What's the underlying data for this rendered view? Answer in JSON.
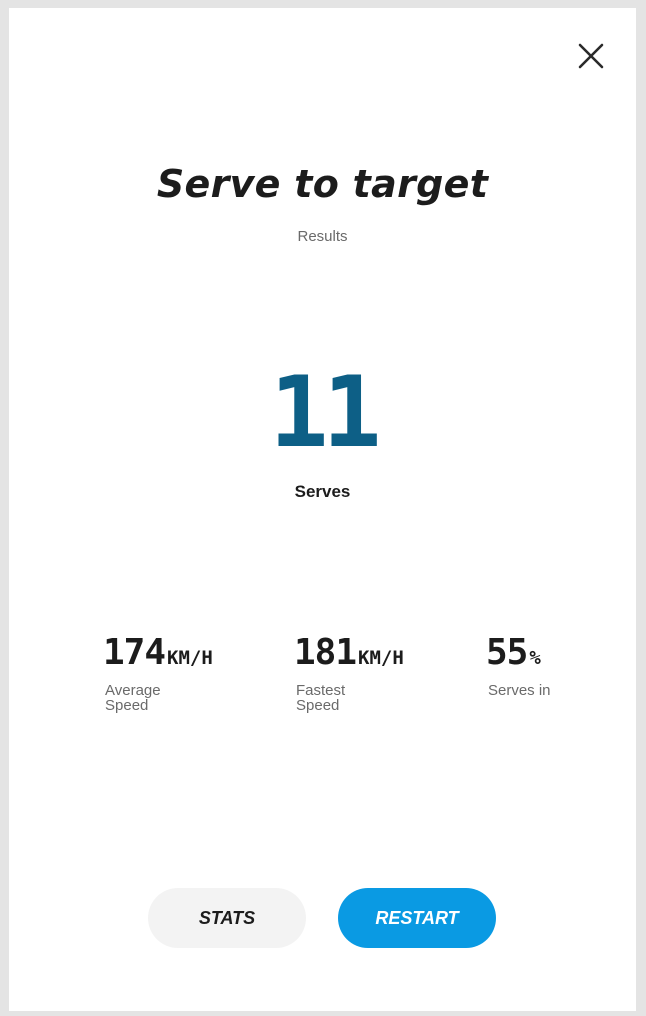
{
  "dialog": {
    "title": "Serve to target",
    "subtitle": "Results",
    "close_icon": "close-icon"
  },
  "summary": {
    "count": "11",
    "label": "Serves"
  },
  "stats": [
    {
      "value": "174",
      "unit": "KM/H",
      "label": "Average Speed"
    },
    {
      "value": "181",
      "unit": "KM/H",
      "label": "Fastest Speed"
    },
    {
      "value": "55",
      "unit": "%",
      "label": "Serves in"
    }
  ],
  "actions": {
    "stats_label": "STATS",
    "restart_label": "RESTART"
  },
  "colors": {
    "accent": "#0a9ae3",
    "count": "#0d5f86"
  }
}
